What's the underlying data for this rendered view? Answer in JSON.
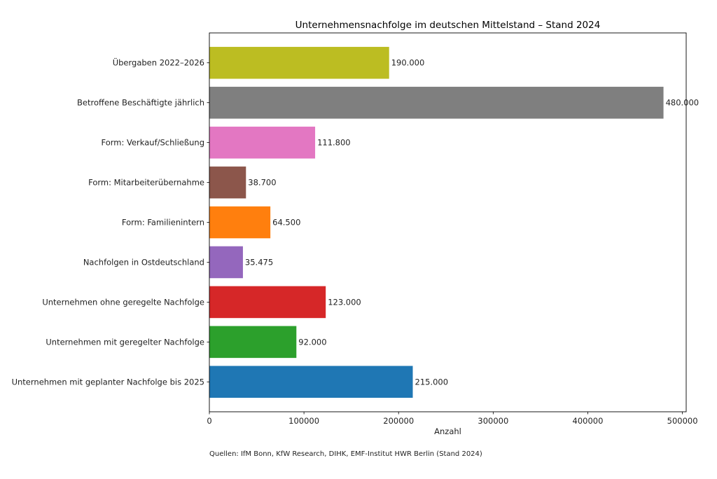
{
  "chart_data": {
    "type": "bar",
    "orientation": "horizontal",
    "title": "Unternehmensnachfolge im deutschen Mittelstand – Stand 2024",
    "xlabel": "Anzahl",
    "ylabel": "",
    "xlim": [
      0,
      504000
    ],
    "xticks": [
      0,
      100000,
      200000,
      300000,
      400000,
      500000
    ],
    "xtick_labels": [
      "0",
      "100000",
      "200000",
      "300000",
      "400000",
      "500000"
    ],
    "grid": false,
    "categories": [
      "Unternehmen mit geplanter Nachfolge bis 2025",
      "Unternehmen mit geregelter Nachfolge",
      "Unternehmen ohne geregelte Nachfolge",
      "Nachfolgen in Ostdeutschland",
      "Form: Familienintern",
      "Form: Mitarbeiterübernahme",
      "Form: Verkauf/Schließung",
      "Betroffene Beschäftigte jährlich",
      "Übergaben 2022–2026"
    ],
    "values": [
      215000,
      92000,
      123000,
      35475,
      64500,
      38700,
      111800,
      480000,
      190000
    ],
    "value_labels": [
      "215.000",
      "92.000",
      "123.000",
      "35.475",
      "64.500",
      "38.700",
      "111.800",
      "480.000",
      "190.000"
    ],
    "colors": [
      "#1f77b4",
      "#2ca02c",
      "#d62728",
      "#9467bd",
      "#ff7f0e",
      "#8c564b",
      "#e377c2",
      "#7f7f7f",
      "#bcbd22"
    ],
    "category_order": "bottom-to-top",
    "source_note": "Quellen: IfM Bonn, KfW Research, DIHK, EMF-Institut HWR Berlin (Stand 2024)"
  }
}
